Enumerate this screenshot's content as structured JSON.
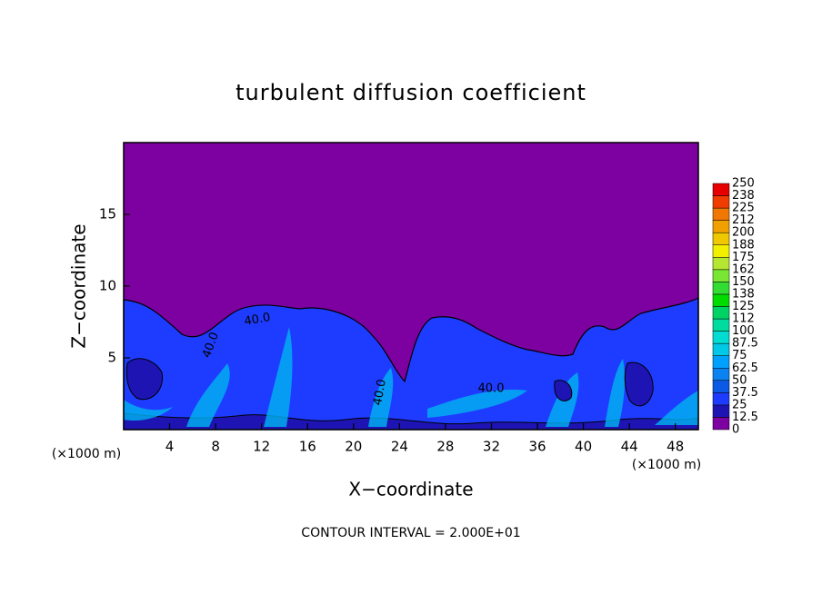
{
  "chart_data": {
    "type": "contour",
    "title": "turbulent diffusion coefficient",
    "x_label": "X−coordinate",
    "y_label": "Z−coordinate",
    "x_unit": "(×1000 m)",
    "footer": "CONTOUR INTERVAL = 2.000E+01",
    "xlim": [
      0,
      50
    ],
    "ylim": [
      0,
      20
    ],
    "xticks": [
      4,
      8,
      12,
      16,
      20,
      24,
      28,
      32,
      36,
      40,
      44,
      48
    ],
    "yticks": [
      5,
      10,
      15
    ],
    "contour_labels": [
      "40.0",
      "40.0",
      "40.0",
      "40.0"
    ],
    "colorbar": {
      "levels": [
        0,
        12.5,
        25,
        37.5,
        50,
        62.5,
        75,
        87.5,
        100,
        112,
        125,
        138,
        150,
        162,
        175,
        188,
        200,
        212,
        225,
        238,
        250
      ],
      "colors": [
        "#7d00a0",
        "#1e14b4",
        "#1e3cff",
        "#0a5ae6",
        "#0a82f0",
        "#00a0ff",
        "#00c8e6",
        "#00dcd2",
        "#00dca0",
        "#00d264",
        "#00dc00",
        "#32dc32",
        "#78e632",
        "#b4e632",
        "#f0f000",
        "#f0c800",
        "#f0a000",
        "#f07800",
        "#f03c00",
        "#e60000",
        "#f08c8c"
      ]
    }
  }
}
